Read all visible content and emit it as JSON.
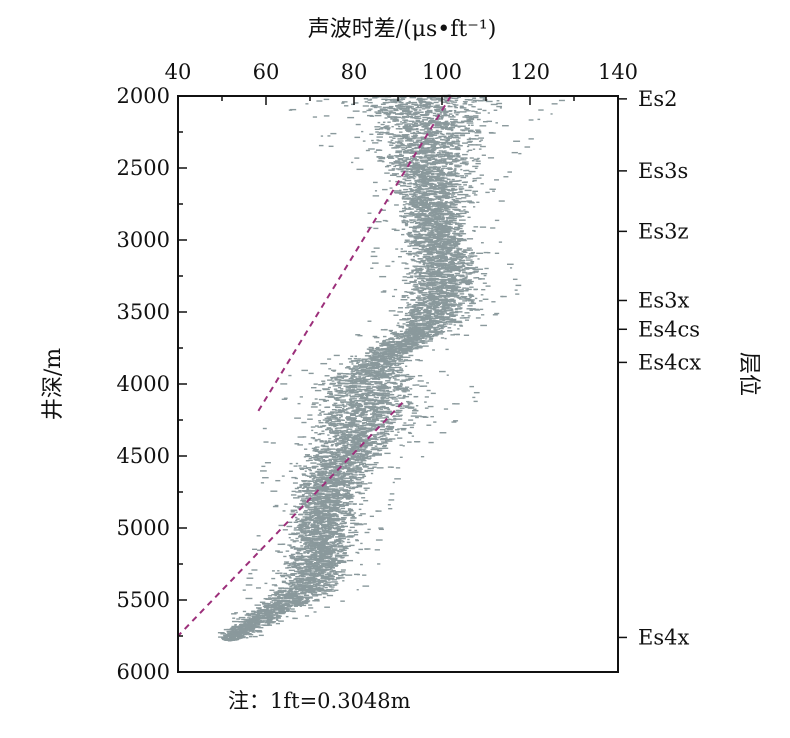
{
  "chart_data": {
    "type": "scatter",
    "title": "",
    "xlabel": "声波时差/(μs•ft⁻¹)",
    "ylabel": "井深/m",
    "y2label": "层位",
    "xlim": [
      40,
      140
    ],
    "ylim": [
      2000,
      6000
    ],
    "y_inverted": true,
    "x_axis_position": "top",
    "xticks": [
      "40",
      "60",
      "80",
      "100",
      "120",
      "140"
    ],
    "yticks": [
      "2000",
      "2500",
      "3000",
      "3500",
      "4000",
      "4500",
      "5000",
      "5500",
      "6000"
    ],
    "grid": false,
    "legend": "none",
    "point_color": "#8a999c",
    "trend_color": "#9c2f7a",
    "profile": [
      {
        "depth": 2000,
        "center": 98,
        "spread": 12
      },
      {
        "depth": 2050,
        "center": 95,
        "spread": 13
      },
      {
        "depth": 2200,
        "center": 96,
        "spread": 11
      },
      {
        "depth": 2400,
        "center": 97,
        "spread": 9
      },
      {
        "depth": 2600,
        "center": 98,
        "spread": 7
      },
      {
        "depth": 2800,
        "center": 98,
        "spread": 6
      },
      {
        "depth": 3000,
        "center": 99,
        "spread": 6
      },
      {
        "depth": 3200,
        "center": 101,
        "spread": 7
      },
      {
        "depth": 3400,
        "center": 100,
        "spread": 7
      },
      {
        "depth": 3550,
        "center": 98,
        "spread": 6
      },
      {
        "depth": 3700,
        "center": 92,
        "spread": 5
      },
      {
        "depth": 3850,
        "center": 85,
        "spread": 5
      },
      {
        "depth": 4000,
        "center": 84,
        "spread": 10
      },
      {
        "depth": 4200,
        "center": 83,
        "spread": 10
      },
      {
        "depth": 4400,
        "center": 80,
        "spread": 8
      },
      {
        "depth": 4600,
        "center": 76,
        "spread": 7
      },
      {
        "depth": 4800,
        "center": 74,
        "spread": 6
      },
      {
        "depth": 5000,
        "center": 73,
        "spread": 6
      },
      {
        "depth": 5200,
        "center": 72,
        "spread": 6
      },
      {
        "depth": 5400,
        "center": 70,
        "spread": 6
      },
      {
        "depth": 5500,
        "center": 66,
        "spread": 5
      },
      {
        "depth": 5600,
        "center": 60,
        "spread": 4
      },
      {
        "depth": 5700,
        "center": 55,
        "spread": 3
      },
      {
        "depth": 5770,
        "center": 52,
        "spread": 2
      }
    ],
    "trend_lines": [
      {
        "points": [
          {
            "x": 102,
            "y": 2000
          },
          {
            "x": 58,
            "y": 4200
          }
        ]
      },
      {
        "points": [
          {
            "x": 91,
            "y": 4130
          },
          {
            "x": 40,
            "y": 5750
          }
        ]
      }
    ],
    "formations": [
      {
        "name": "Es2",
        "depth": 2020
      },
      {
        "name": "Es3s",
        "depth": 2520
      },
      {
        "name": "Es3z",
        "depth": 2940
      },
      {
        "name": "Es3x",
        "depth": 3420
      },
      {
        "name": "Es4cs",
        "depth": 3620
      },
      {
        "name": "Es4cx",
        "depth": 3850
      },
      {
        "name": "Es4x",
        "depth": 5760
      }
    ]
  },
  "note": "注：1ft=0.3048m"
}
